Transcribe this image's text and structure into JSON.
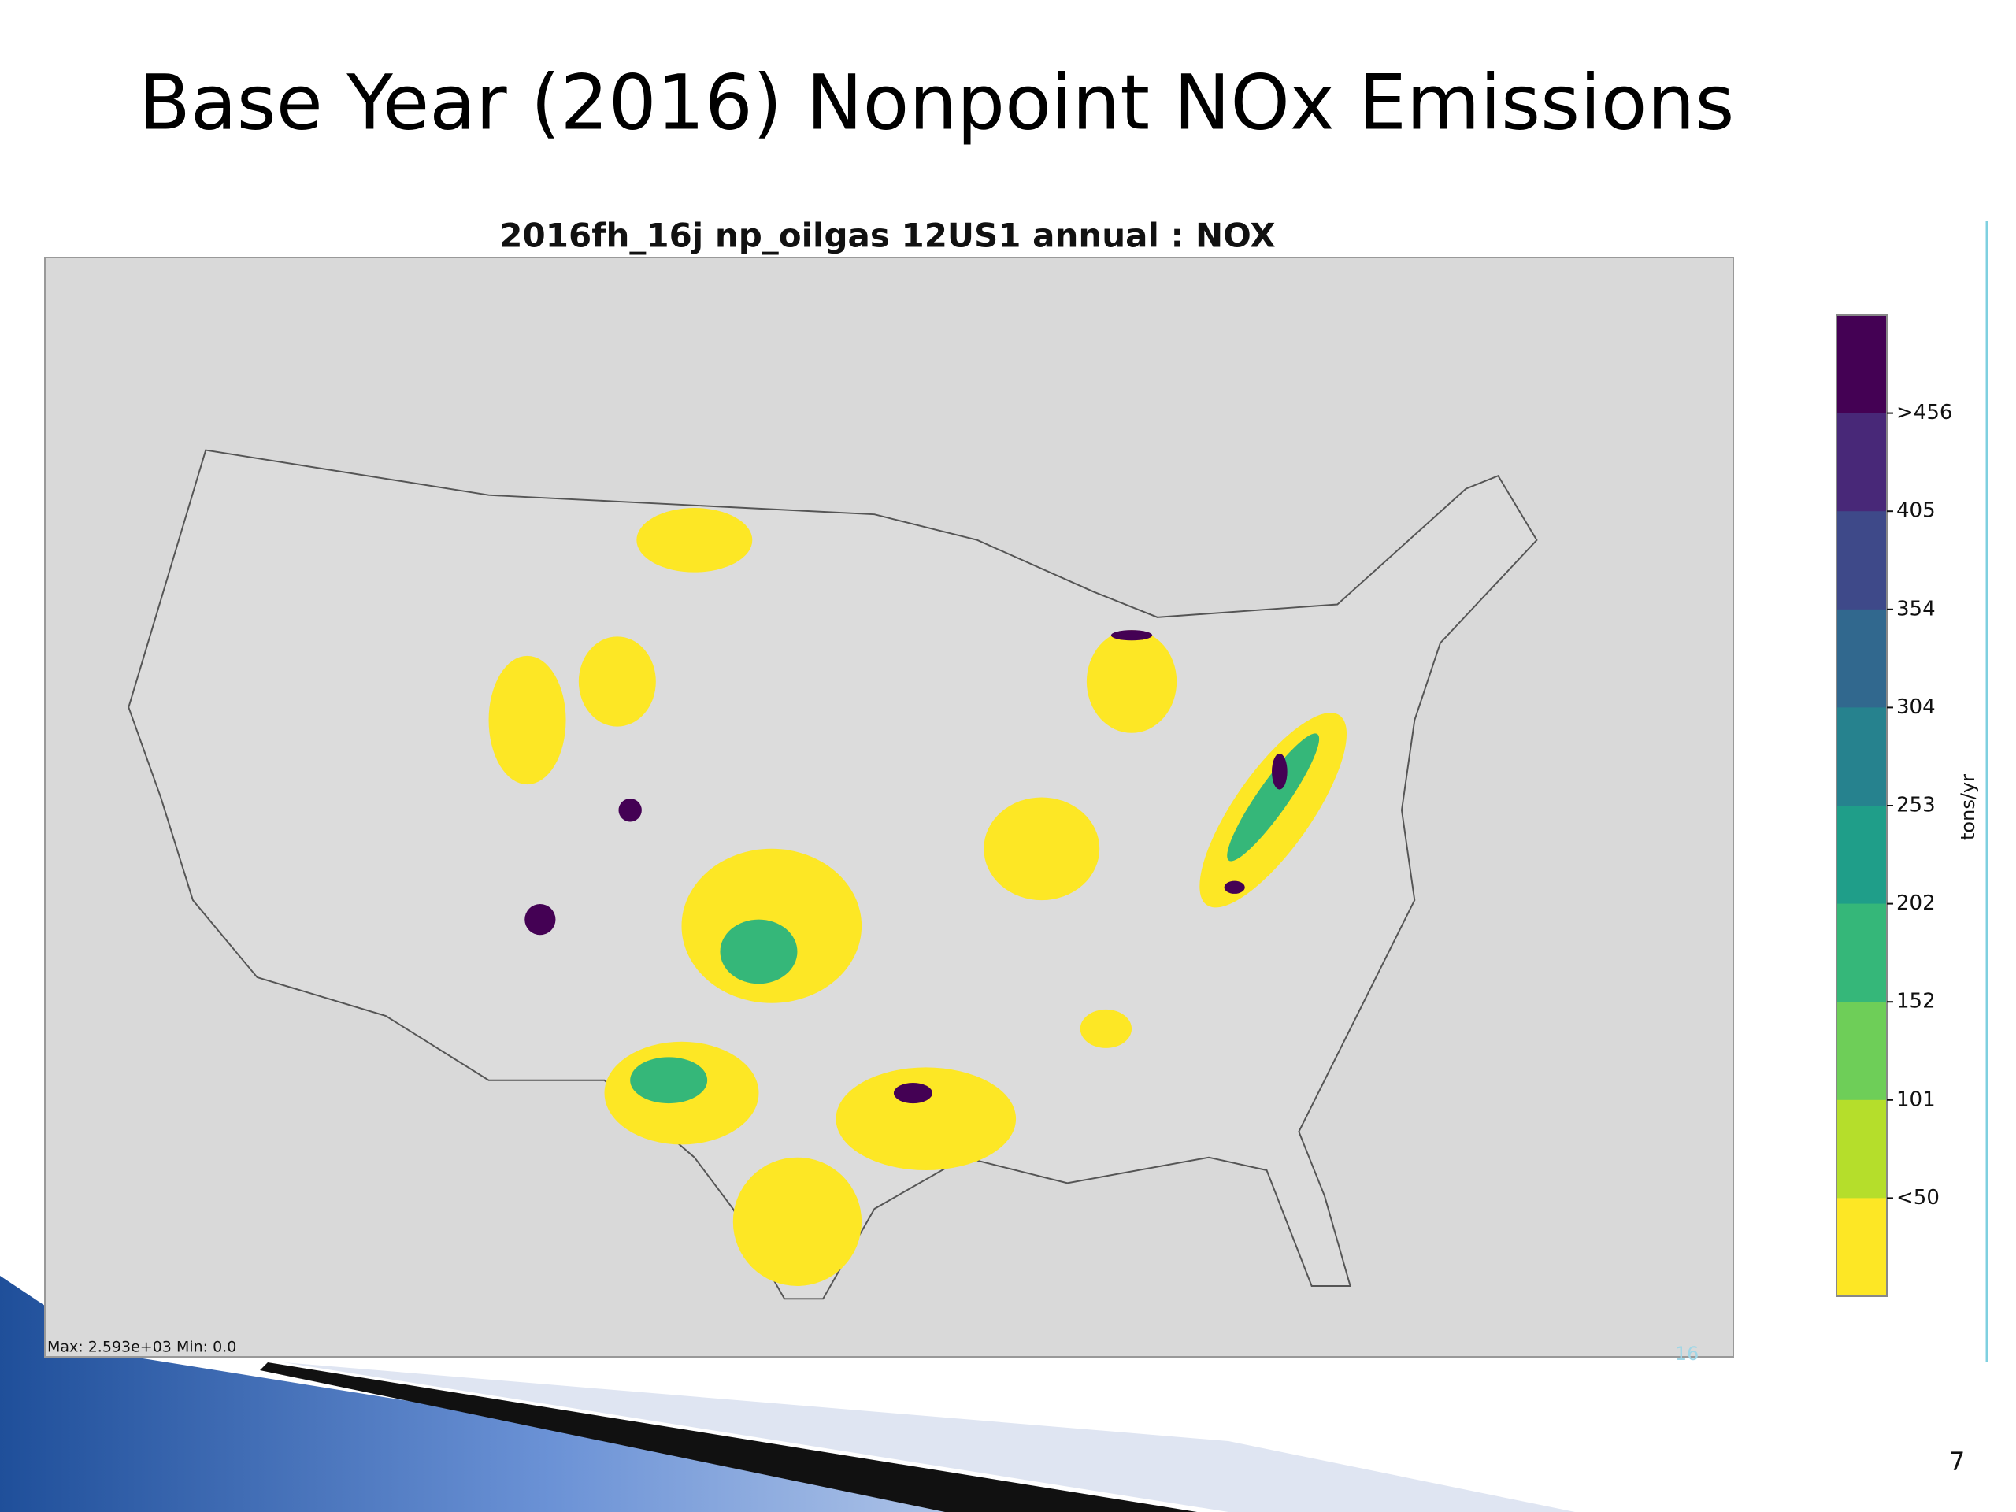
{
  "header": {
    "title": "Base Year (2016) Nonpoint NOx Emissions"
  },
  "map": {
    "title": "2016fh_16j np_oilgas 12US1 annual : NOX",
    "footnote": "Max: 2.593e+03  Min: 0.0",
    "watermark": "16",
    "legend": {
      "title": "tons/yr",
      "colors": [
        "#440154",
        "#482878",
        "#3e4989",
        "#31688e",
        "#26828e",
        "#1f9e89",
        "#35b779",
        "#6ece58",
        "#b5de2b",
        "#fde725"
      ],
      "ticks": [
        {
          "value": 456,
          "label": ">456"
        },
        405,
        354,
        304,
        253,
        202,
        152,
        101,
        {
          "value": 50,
          "label": "<50"
        }
      ]
    }
  },
  "footer": {
    "page_number": "7"
  }
}
